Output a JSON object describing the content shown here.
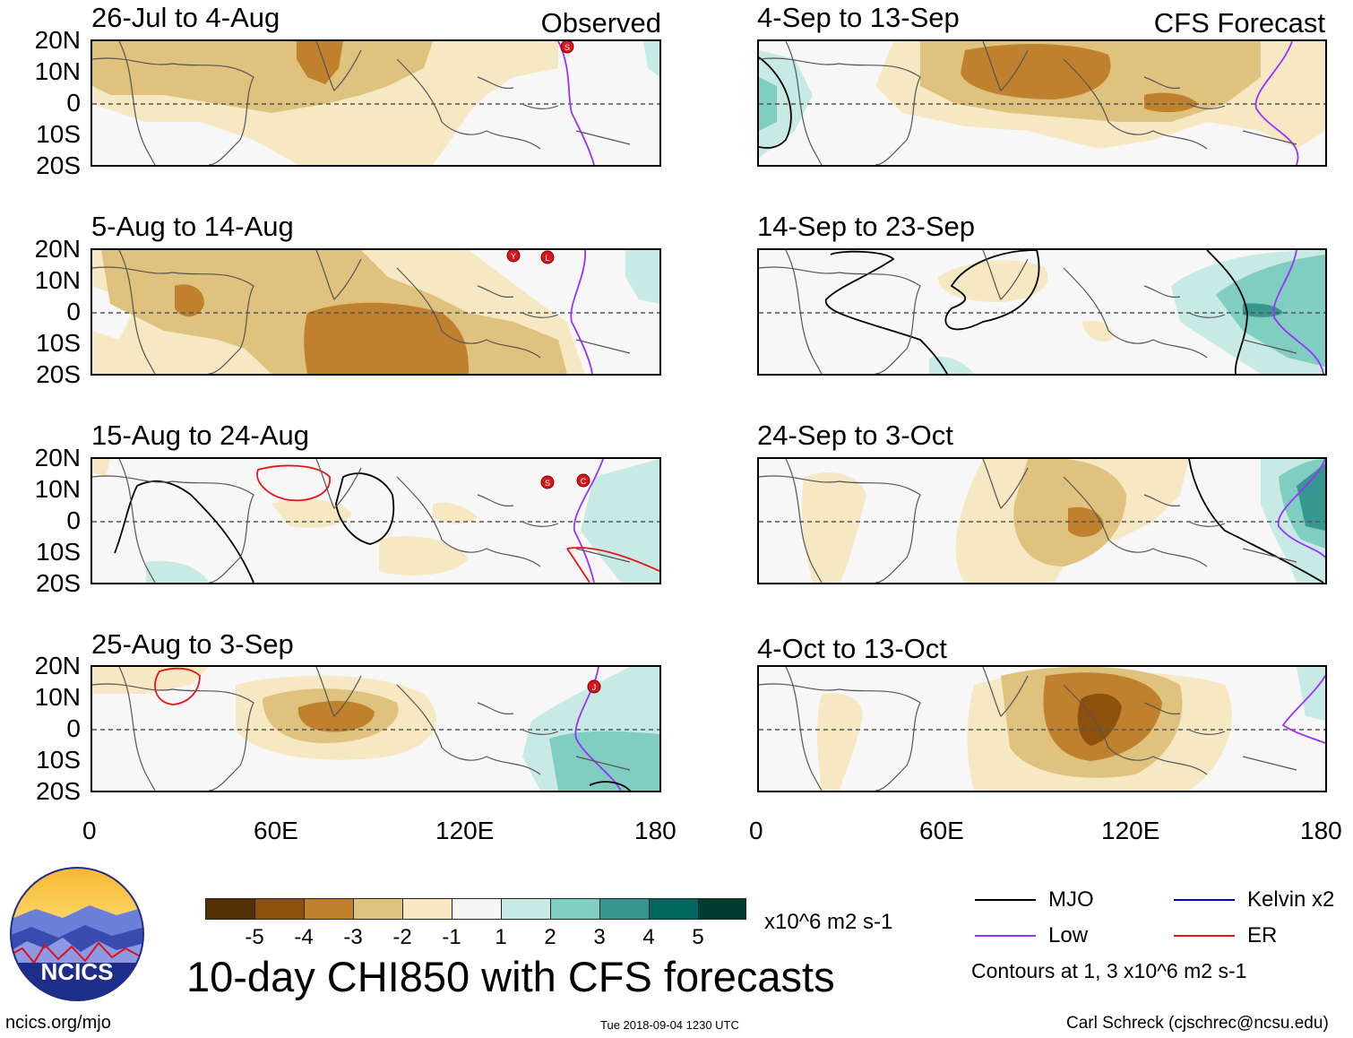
{
  "panels": [
    {
      "title": "26-Jul to 4-Aug",
      "label": "Observed"
    },
    {
      "title": "5-Aug to 14-Aug",
      "label": ""
    },
    {
      "title": "15-Aug to 24-Aug",
      "label": ""
    },
    {
      "title": "25-Aug to 3-Sep",
      "label": ""
    },
    {
      "title": "4-Sep to 13-Sep",
      "label": "CFS Forecast"
    },
    {
      "title": "14-Sep to 23-Sep",
      "label": ""
    },
    {
      "title": "24-Sep to 3-Oct",
      "label": ""
    },
    {
      "title": "4-Oct to 13-Oct",
      "label": ""
    }
  ],
  "axes": {
    "lat_labels": [
      "20N",
      "10N",
      "0",
      "10S",
      "20S"
    ],
    "lon_labels": [
      "0",
      "60E",
      "120E",
      "180"
    ]
  },
  "colorbar": {
    "colors": [
      "#543005",
      "#8c510a",
      "#bf812d",
      "#dfc27d",
      "#f6e8c3",
      "#f5f5f5",
      "#c7eae5",
      "#80cdc1",
      "#35978f",
      "#01665e",
      "#003c30"
    ],
    "ticks": [
      "-5",
      "-4",
      "-3",
      "-2",
      "-1",
      "1",
      "2",
      "3",
      "4",
      "5"
    ],
    "units": "x10^6 m2 s-1"
  },
  "legend": {
    "mjo": "MJO",
    "low": "Low",
    "kelvin": "Kelvin x2",
    "er": "ER",
    "contours_note": "Contours at 1, 3 x10^6 m2 s-1",
    "colors": {
      "mjo": "#000000",
      "low": "#9b30ff",
      "kelvin": "#0000cc",
      "er": "#e8141a"
    }
  },
  "title": "10-day CHI850 with CFS forecasts",
  "logo": {
    "text": "NCICS"
  },
  "footer": {
    "website": "ncics.org/mjo",
    "timestamp": "Tue 2018-09-04 1230 UTC",
    "credit": "Carl Schreck (cjschrec@ncsu.edu)"
  },
  "storms": [
    {
      "panel": 0,
      "letter": "S"
    },
    {
      "panel": 1,
      "letter": "Y"
    },
    {
      "panel": 1,
      "letter": "L"
    },
    {
      "panel": 2,
      "letter": "S"
    },
    {
      "panel": 2,
      "letter": "C"
    },
    {
      "panel": 3,
      "letter": "J"
    }
  ]
}
